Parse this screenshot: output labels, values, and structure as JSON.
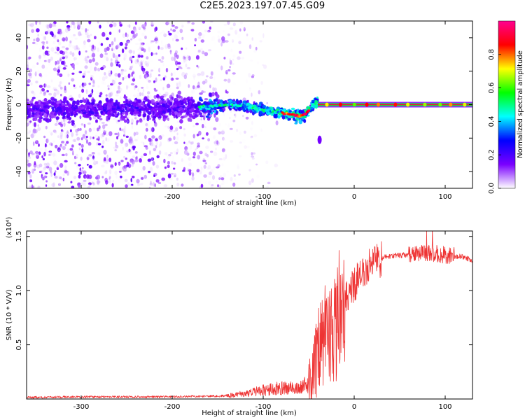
{
  "figure": {
    "title": "C2E5.2023.197.07.45.G09"
  },
  "chart_data": [
    {
      "type": "heatmap",
      "name": "spectrogram",
      "xlabel": "Height of straight line (km)",
      "ylabel": "Frequency (Hz)",
      "xlim": [
        -360,
        130
      ],
      "ylim": [
        -50,
        50
      ],
      "xticks": [
        -300,
        -200,
        -100,
        0,
        100
      ],
      "yticks": [
        -40,
        -20,
        0,
        20,
        40
      ],
      "colorbar": {
        "label": "Normalized spectral amplitude",
        "range": [
          0.0,
          1.0
        ],
        "ticks": [
          0.0,
          0.2,
          0.4,
          0.6,
          0.8
        ],
        "colors": [
          "#ffffff",
          "#7a00ff",
          "#0000ff",
          "#00ffff",
          "#00ff00",
          "#ffff00",
          "#ff0000",
          "#ff0090"
        ]
      },
      "ridge": {
        "x": [
          -360,
          -300,
          -250,
          -200,
          -160,
          -140,
          -120,
          -100,
          -85,
          -70,
          -60,
          -52,
          -47,
          -43,
          -40,
          -30,
          0,
          50,
          130
        ],
        "y": [
          -3,
          -3,
          -2.5,
          -2,
          -1,
          0,
          -1,
          -3,
          -4.5,
          -6,
          -7,
          -5,
          -2,
          2,
          1,
          0,
          0,
          0,
          0
        ]
      },
      "notes": {
        "noise_region_x": [
          -360,
          -140
        ],
        "clean_tone_x": [
          -40,
          130
        ],
        "clean_tone_frequency_hz": 0
      }
    },
    {
      "type": "line",
      "name": "snr",
      "xlabel": "Height of straight line (km)",
      "ylabel": "SNR (10 * V/V)",
      "y_multiplier_label": "(x10⁴)",
      "xlim": [
        -360,
        130
      ],
      "ylim": [
        0,
        1.55
      ],
      "xticks": [
        -300,
        -200,
        -100,
        0,
        100
      ],
      "yticks": [
        0.5,
        1.0,
        1.5
      ],
      "ytick_labels": [
        "0.5",
        "1.0",
        "1.5"
      ],
      "color": "#ee3333",
      "series": [
        {
          "name": "SNR",
          "x": [
            -360,
            -300,
            -200,
            -140,
            -120,
            -100,
            -80,
            -60,
            -50,
            -45,
            -40,
            -35,
            -30,
            -25,
            -20,
            -15,
            -10,
            -5,
            0,
            10,
            20,
            30,
            40,
            60,
            80,
            100,
            120,
            130
          ],
          "y": [
            0.015,
            0.02,
            0.02,
            0.03,
            0.05,
            0.08,
            0.1,
            0.1,
            0.15,
            0.25,
            0.42,
            0.55,
            0.6,
            0.6,
            0.7,
            0.85,
            0.9,
            1.0,
            1.05,
            1.18,
            1.25,
            1.3,
            1.32,
            1.33,
            1.35,
            1.33,
            1.31,
            1.28
          ]
        }
      ]
    }
  ]
}
